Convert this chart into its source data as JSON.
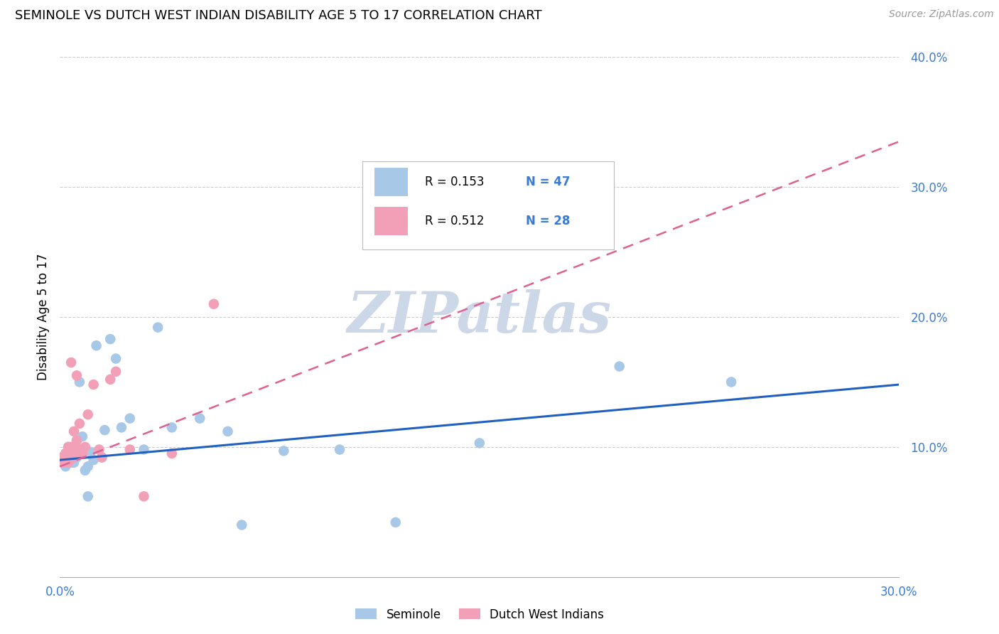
{
  "title": "SEMINOLE VS DUTCH WEST INDIAN DISABILITY AGE 5 TO 17 CORRELATION CHART",
  "source": "Source: ZipAtlas.com",
  "ylabel": "Disability Age 5 to 17",
  "xlim": [
    0.0,
    0.3
  ],
  "ylim": [
    0.0,
    0.4
  ],
  "xticks": [
    0.0,
    0.05,
    0.1,
    0.15,
    0.2,
    0.25,
    0.3
  ],
  "yticks": [
    0.1,
    0.2,
    0.3,
    0.4
  ],
  "ytick_labels_right": [
    "10.0%",
    "20.0%",
    "30.0%",
    "40.0%"
  ],
  "xtick_labels": [
    "0.0%",
    "",
    "",
    "",
    "",
    "",
    "30.0%"
  ],
  "seminole_R": 0.153,
  "seminole_N": 47,
  "dutch_R": 0.512,
  "dutch_N": 28,
  "seminole_color": "#a8c8e8",
  "dutch_color": "#f2a0b8",
  "seminole_line_color": "#2060c0",
  "dutch_line_color": "#e06090",
  "watermark": "ZIPatlas",
  "watermark_color": "#ccd8e8",
  "seminole_line_x": [
    0.0,
    0.3
  ],
  "seminole_line_y": [
    0.09,
    0.148
  ],
  "dutch_line_x": [
    0.0,
    0.3
  ],
  "dutch_line_y": [
    0.085,
    0.335
  ],
  "seminole_x": [
    0.001,
    0.001,
    0.002,
    0.002,
    0.002,
    0.003,
    0.003,
    0.003,
    0.003,
    0.004,
    0.004,
    0.004,
    0.004,
    0.005,
    0.005,
    0.005,
    0.005,
    0.006,
    0.006,
    0.006,
    0.007,
    0.007,
    0.008,
    0.009,
    0.01,
    0.01,
    0.011,
    0.012,
    0.013,
    0.015,
    0.016,
    0.018,
    0.02,
    0.022,
    0.025,
    0.03,
    0.035,
    0.04,
    0.05,
    0.06,
    0.065,
    0.08,
    0.1,
    0.12,
    0.15,
    0.2,
    0.24
  ],
  "seminole_y": [
    0.092,
    0.088,
    0.095,
    0.09,
    0.085,
    0.1,
    0.095,
    0.092,
    0.088,
    0.098,
    0.095,
    0.092,
    0.088,
    0.1,
    0.096,
    0.092,
    0.088,
    0.105,
    0.098,
    0.092,
    0.15,
    0.098,
    0.108,
    0.082,
    0.062,
    0.085,
    0.096,
    0.09,
    0.178,
    0.092,
    0.113,
    0.183,
    0.168,
    0.115,
    0.122,
    0.098,
    0.192,
    0.115,
    0.122,
    0.112,
    0.04,
    0.097,
    0.098,
    0.042,
    0.103,
    0.162,
    0.15
  ],
  "dutch_x": [
    0.001,
    0.001,
    0.002,
    0.002,
    0.003,
    0.003,
    0.003,
    0.004,
    0.004,
    0.005,
    0.005,
    0.005,
    0.006,
    0.006,
    0.007,
    0.007,
    0.008,
    0.009,
    0.01,
    0.012,
    0.014,
    0.015,
    0.018,
    0.02,
    0.025,
    0.03,
    0.04,
    0.055
  ],
  "dutch_y": [
    0.092,
    0.088,
    0.095,
    0.09,
    0.1,
    0.095,
    0.088,
    0.165,
    0.1,
    0.092,
    0.098,
    0.112,
    0.105,
    0.155,
    0.118,
    0.098,
    0.095,
    0.1,
    0.125,
    0.148,
    0.098,
    0.092,
    0.152,
    0.158,
    0.098,
    0.062,
    0.095,
    0.21
  ]
}
